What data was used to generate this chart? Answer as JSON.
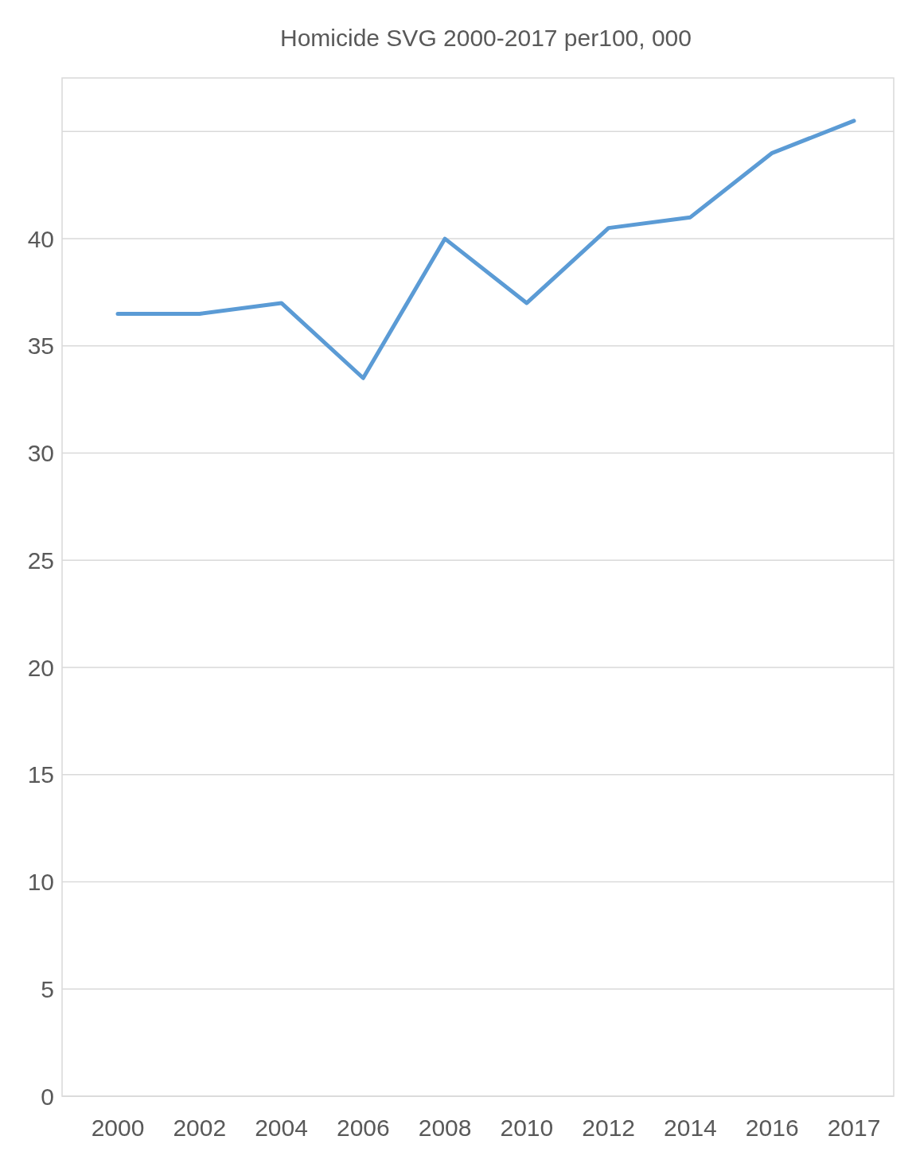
{
  "chart_data": {
    "type": "line",
    "title": "Homicide SVG 2000-2017 per100, 000",
    "categories": [
      "2000",
      "2002",
      "2004",
      "2006",
      "2008",
      "2010",
      "2012",
      "2014",
      "2016",
      "2017"
    ],
    "series": [
      {
        "color": "#5b9bd5",
        "values": [
          36.5,
          36.5,
          37,
          33.5,
          40,
          37,
          40.5,
          41,
          44,
          45.5
        ]
      }
    ],
    "ylim": [
      0,
      47.5
    ],
    "yticks": [
      0,
      5,
      10,
      15,
      20,
      25,
      30,
      35,
      40,
      {
        "value": 45,
        "label": null
      }
    ],
    "grid": "y",
    "marker": "none",
    "line_style": "solid"
  }
}
